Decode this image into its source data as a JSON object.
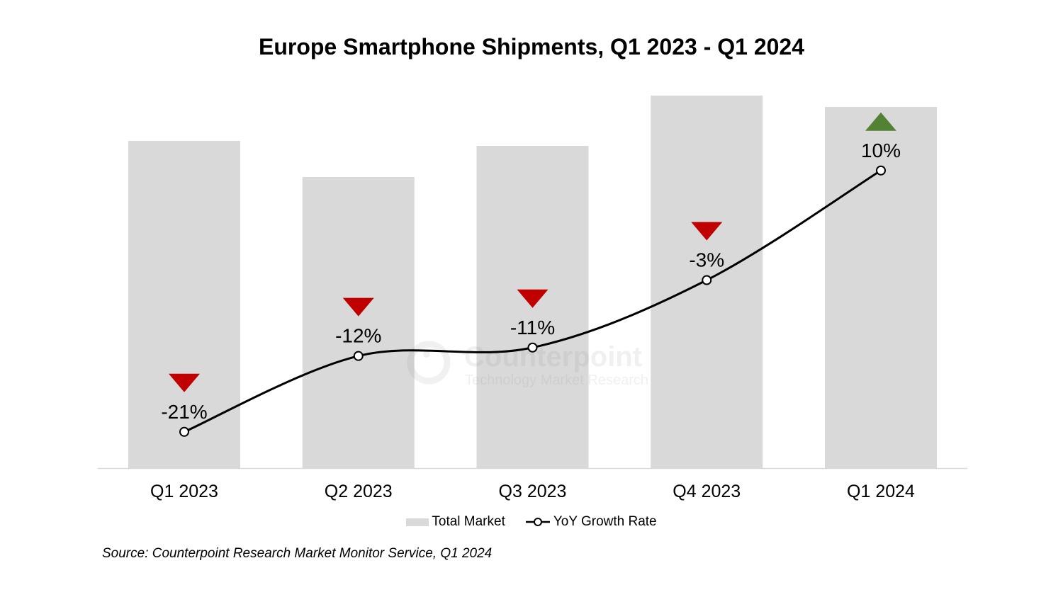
{
  "chart_data": {
    "type": "bar",
    "title": "Europe Smartphone Shipments, Q1 2023 - Q1 2024",
    "categories": [
      "Q1 2023",
      "Q2 2023",
      "Q3 2023",
      "Q4 2023",
      "Q1 2024"
    ],
    "series": [
      {
        "name": "Total Market",
        "type": "bar",
        "axis": "primary",
        "values": [
          46.2,
          41.1,
          45.5,
          52.6,
          51.0
        ],
        "color": "#d9d9d9"
      },
      {
        "name": "YoY Growth Rate",
        "type": "line",
        "axis": "secondary",
        "smooth": true,
        "values": [
          -21,
          -12,
          -11,
          -3,
          10
        ],
        "labels": [
          "-21%",
          "-12%",
          "-11%",
          "-3%",
          "10%"
        ],
        "color": "#000000",
        "marker": "open-circle"
      }
    ],
    "ylim": [
      0,
      55
    ],
    "y2lim": [
      -25.3,
      20.9
    ],
    "y_axis_visible": false,
    "grid": false,
    "legend": "bottom",
    "indicators": {
      "up_color": "#548235",
      "down_color": "#c00000",
      "up_icon": "triangle-up-icon",
      "down_icon": "triangle-down-icon"
    },
    "watermark": {
      "name": "Counterpoint",
      "tagline": "Technology Market Research"
    }
  },
  "source": "Source: Counterpoint Research Market Monitor Service, Q1 2024"
}
